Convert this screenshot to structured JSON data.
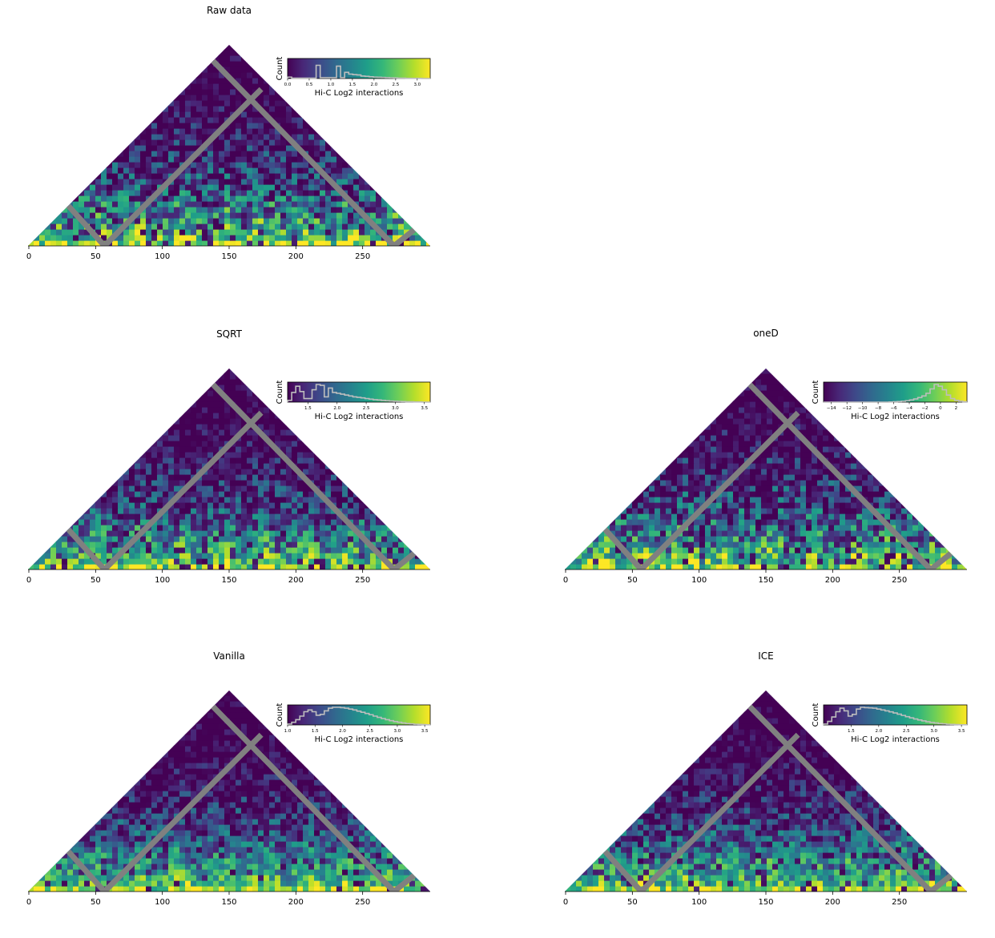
{
  "colors": {
    "viridis": [
      "#440154",
      "#482878",
      "#3e4989",
      "#31688e",
      "#26828e",
      "#1f9e89",
      "#35b779",
      "#6ece58",
      "#b5de2b",
      "#fde725"
    ],
    "masked": "#808080",
    "histogram": "#bdbdbd"
  },
  "chart_data": [
    {
      "type": "heatmap",
      "title": "Raw data",
      "x_ticks": [
        0,
        50,
        100,
        150,
        200,
        250
      ],
      "xlim": [
        0,
        300
      ],
      "colorbar": {
        "label": "Hi-C Log2 interactions",
        "ylabel": "Count",
        "range": [
          0.0,
          3.3
        ],
        "ticks": [
          "0.0",
          "0.5",
          "1.0",
          "1.5",
          "2.0",
          "2.5",
          "3.0"
        ],
        "tick_values": [
          0.0,
          0.5,
          1.0,
          1.5,
          2.0,
          2.5,
          3.0
        ],
        "histogram": [
          0.08,
          0.02,
          0.02,
          0.02,
          0.02,
          0.02,
          0.02,
          0.75,
          0.05,
          0.05,
          0.05,
          0.05,
          0.7,
          0.05,
          0.35,
          0.25,
          0.22,
          0.2,
          0.14,
          0.12,
          0.1,
          0.08,
          0.07,
          0.06,
          0.05,
          0.04,
          0.03,
          0.02,
          0.02,
          0.01,
          0.01,
          0.01,
          0.01,
          0.0,
          0.0
        ]
      }
    },
    {
      "type": "heatmap",
      "title": "SQRT",
      "x_ticks": [
        0,
        50,
        100,
        150,
        200,
        250
      ],
      "xlim": [
        0,
        300
      ],
      "colorbar": {
        "label": "Hi-C Log2 interactions",
        "ylabel": "Count",
        "range": [
          1.15,
          3.6
        ],
        "ticks": [
          "1.5",
          "2.0",
          "2.5",
          "3.0",
          "3.5"
        ],
        "tick_values": [
          1.5,
          2.0,
          2.5,
          3.0,
          3.5
        ],
        "histogram": [
          0.1,
          0.55,
          0.9,
          0.6,
          0.2,
          0.2,
          0.7,
          1.0,
          0.95,
          0.3,
          0.8,
          0.55,
          0.5,
          0.45,
          0.4,
          0.35,
          0.3,
          0.27,
          0.24,
          0.2,
          0.17,
          0.14,
          0.12,
          0.1,
          0.08,
          0.06,
          0.05,
          0.04,
          0.03,
          0.02,
          0.02,
          0.01,
          0.01,
          0.0,
          0.0
        ]
      }
    },
    {
      "type": "heatmap",
      "title": "oneD",
      "x_ticks": [
        0,
        50,
        100,
        150,
        200,
        250
      ],
      "xlim": [
        0,
        300
      ],
      "colorbar": {
        "label": "Hi-C Log2 interactions",
        "ylabel": "Count",
        "range": [
          -15.0,
          3.4
        ],
        "ticks": [
          "−14",
          "−12",
          "−10",
          "−8",
          "−6",
          "−4",
          "−2",
          "0",
          "2"
        ],
        "tick_values": [
          -14,
          -12,
          -10,
          -8,
          -6,
          -4,
          -2,
          0,
          2
        ],
        "histogram": [
          0.0,
          0.0,
          0.0,
          0.0,
          0.0,
          0.0,
          0.0,
          0.0,
          0.0,
          0.0,
          0.0,
          0.0,
          0.0,
          0.0,
          0.0,
          0.0,
          0.01,
          0.02,
          0.03,
          0.05,
          0.08,
          0.12,
          0.18,
          0.26,
          0.35,
          0.5,
          0.75,
          1.0,
          0.9,
          0.7,
          0.4,
          0.2,
          0.1,
          0.05,
          0.02
        ]
      }
    },
    {
      "type": "heatmap",
      "title": "Vanilla",
      "x_ticks": [
        0,
        50,
        100,
        150,
        200,
        250
      ],
      "xlim": [
        0,
        300
      ],
      "colorbar": {
        "label": "Hi-C Log2 interactions",
        "ylabel": "Count",
        "range": [
          1.0,
          3.6
        ],
        "ticks": [
          "1.0",
          "1.5",
          "2.0",
          "2.5",
          "3.0",
          "3.5"
        ],
        "tick_values": [
          1.0,
          1.5,
          2.0,
          2.5,
          3.0,
          3.5
        ],
        "histogram": [
          0.05,
          0.15,
          0.3,
          0.5,
          0.75,
          0.85,
          0.75,
          0.55,
          0.6,
          0.8,
          0.95,
          1.0,
          1.0,
          0.98,
          0.95,
          0.9,
          0.85,
          0.78,
          0.72,
          0.65,
          0.58,
          0.5,
          0.43,
          0.36,
          0.3,
          0.24,
          0.19,
          0.15,
          0.11,
          0.08,
          0.06,
          0.04,
          0.03,
          0.02,
          0.01
        ]
      }
    },
    {
      "type": "heatmap",
      "title": "ICE",
      "x_ticks": [
        0,
        50,
        100,
        150,
        200,
        250
      ],
      "xlim": [
        0,
        300
      ],
      "colorbar": {
        "label": "Hi-C Log2 interactions",
        "ylabel": "Count",
        "range": [
          1.0,
          3.6
        ],
        "ticks": [
          "1.5",
          "2.0",
          "2.5",
          "3.0",
          "3.5"
        ],
        "tick_values": [
          1.5,
          2.0,
          2.5,
          3.0,
          3.5
        ],
        "histogram": [
          0.05,
          0.2,
          0.45,
          0.75,
          0.95,
          0.8,
          0.5,
          0.6,
          0.9,
          1.0,
          0.98,
          0.97,
          0.95,
          0.9,
          0.85,
          0.8,
          0.74,
          0.68,
          0.61,
          0.54,
          0.47,
          0.4,
          0.34,
          0.28,
          0.23,
          0.18,
          0.14,
          0.11,
          0.08,
          0.06,
          0.04,
          0.03,
          0.02,
          0.01,
          0.01
        ]
      }
    }
  ]
}
